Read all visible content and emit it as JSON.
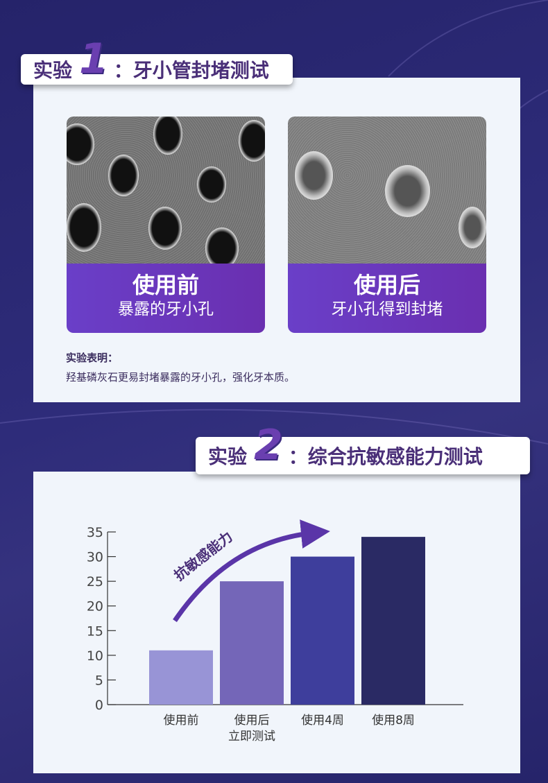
{
  "experiment1": {
    "prefix": "实验",
    "number": "1",
    "title": "：牙小管封堵测试",
    "before": {
      "title": "使用前",
      "subtitle": "暴露的牙小孔"
    },
    "after": {
      "title": "使用后",
      "subtitle": "牙小孔得到封堵"
    },
    "conclusion_label": "实验表明：",
    "conclusion_text": "羟基磷灰石更易封堵暴露的牙小孔，强化牙本质。"
  },
  "experiment2": {
    "prefix": "实验",
    "number": "2",
    "title": "：综合抗敏感能力测试"
  },
  "colors": {
    "background": "#2a2870",
    "panel": "#f1f5fb",
    "accent": "#6a3fc8",
    "title_text": "#4a2f78"
  },
  "chart_data": {
    "type": "bar",
    "categories": [
      [
        "使用前"
      ],
      [
        "使用后",
        "立即测试"
      ],
      [
        "使用4周"
      ],
      [
        "使用8周"
      ]
    ],
    "values": [
      11,
      25,
      30,
      34
    ],
    "bar_colors": [
      "#9894d6",
      "#7466b8",
      "#3e3e9c",
      "#2a2a64"
    ],
    "yticks": [
      0,
      5,
      10,
      15,
      20,
      25,
      30,
      35
    ],
    "ylim": [
      0,
      35
    ],
    "annotation": "抗敏感能力",
    "grid": false
  }
}
